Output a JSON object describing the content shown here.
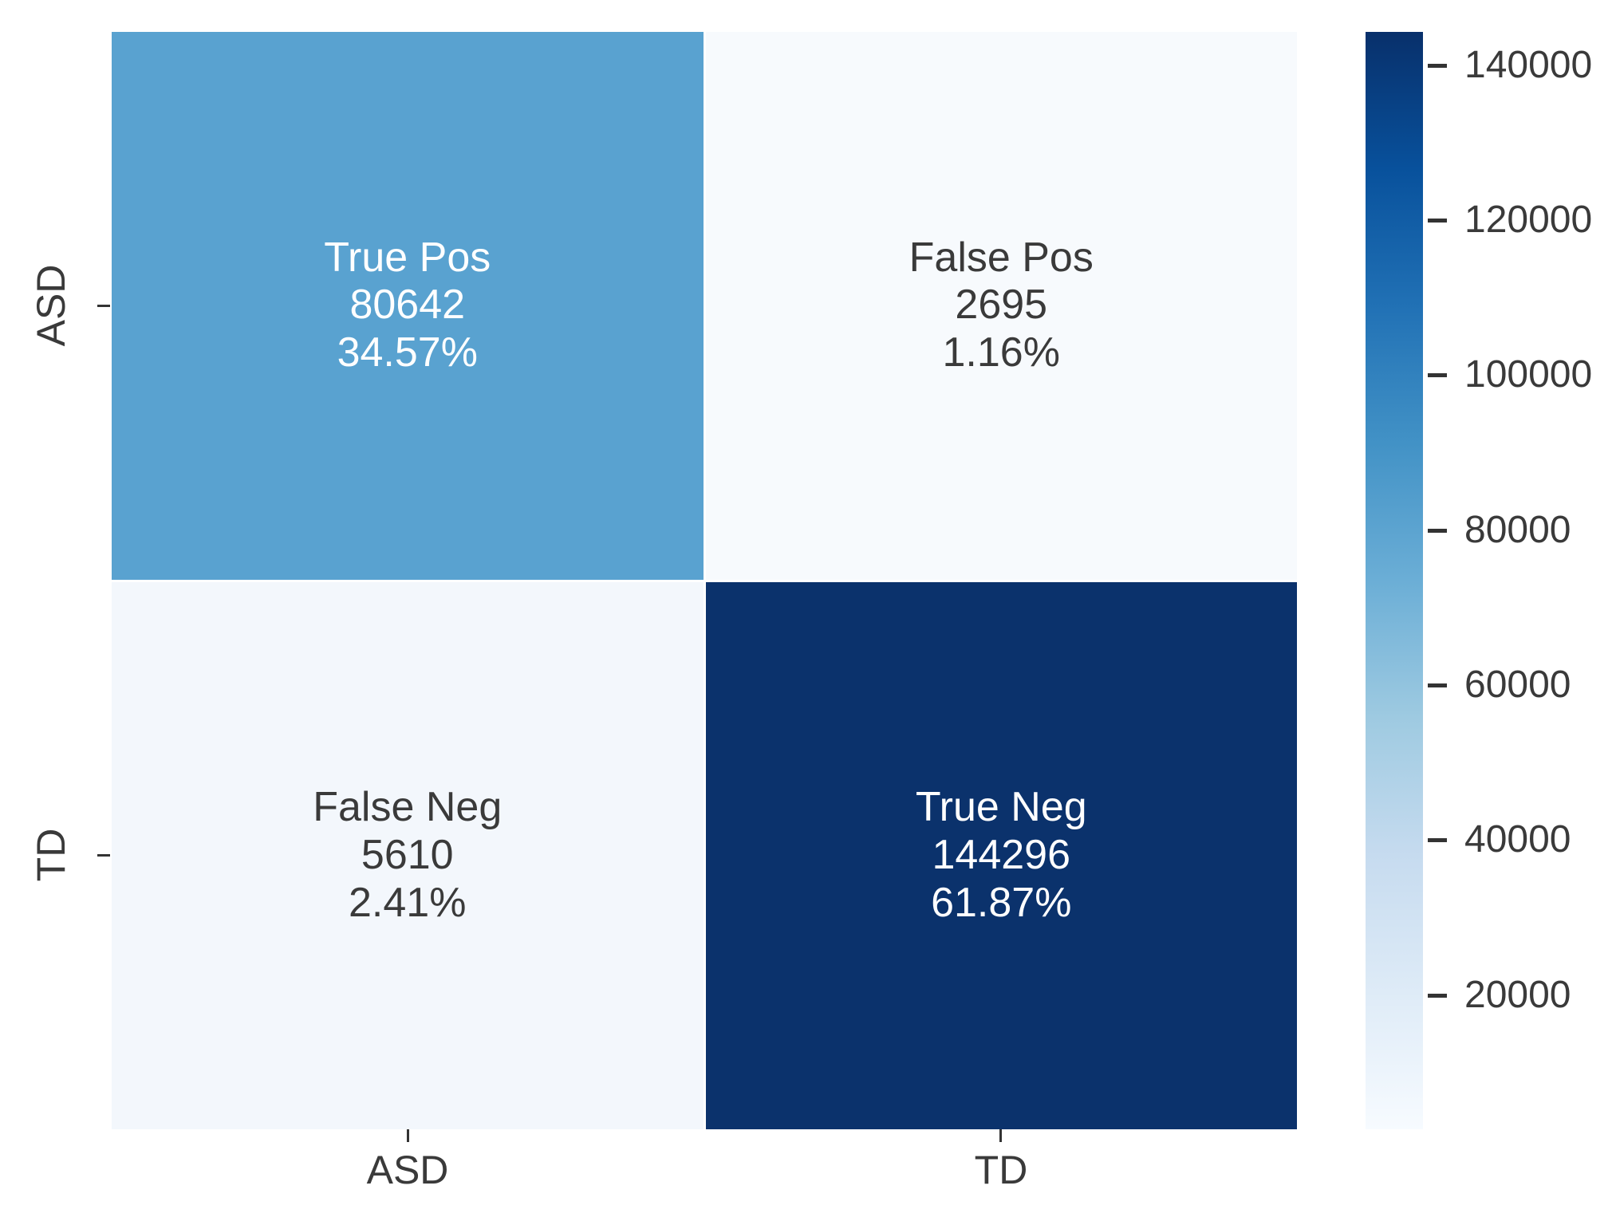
{
  "chart_data": {
    "type": "heatmap",
    "title": "",
    "xlabel": "",
    "ylabel": "",
    "x_categories": [
      "ASD",
      "TD"
    ],
    "y_categories": [
      "ASD",
      "TD"
    ],
    "legend_position": "right-colorbar",
    "grid": false,
    "cells": [
      {
        "row": "ASD",
        "col": "ASD",
        "label": "True Pos",
        "count": 80642,
        "percent": "34.57%",
        "color": "#59a2d0",
        "text_color": "#ffffff"
      },
      {
        "row": "ASD",
        "col": "TD",
        "label": "False Pos",
        "count": 2695,
        "percent": "1.16%",
        "color": "#f7fafd",
        "text_color": "#3a3a3a"
      },
      {
        "row": "TD",
        "col": "ASD",
        "label": "False Neg",
        "count": 5610,
        "percent": "2.41%",
        "color": "#f3f7fc",
        "text_color": "#3a3a3a"
      },
      {
        "row": "TD",
        "col": "TD",
        "label": "True Neg",
        "count": 144296,
        "percent": "61.87%",
        "color": "#0b326c",
        "text_color": "#ffffff"
      }
    ],
    "colorbar": {
      "vmin": 2695,
      "vmax": 144296,
      "ticks": [
        20000,
        40000,
        60000,
        80000,
        100000,
        120000,
        140000
      ],
      "gradient_stops": [
        "#f7fbff",
        "#deebf7",
        "#c6dbef",
        "#9ecae1",
        "#6baed6",
        "#4292c6",
        "#2171b5",
        "#08519c",
        "#08306b"
      ]
    },
    "colors": {
      "axis_text": "#3a3a3a",
      "tick_mark": "#333333",
      "background": "#ffffff"
    }
  }
}
